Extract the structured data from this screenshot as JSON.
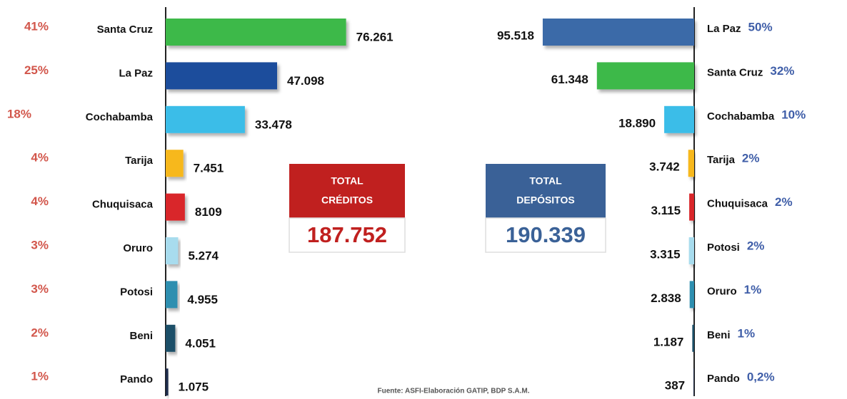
{
  "chart_data": [
    {
      "type": "bar",
      "orientation": "horizontal",
      "categories": [
        "Santa Cruz",
        "La Paz",
        "Cochabamba",
        "Tarija",
        "Chuquisaca",
        "Oruro",
        "Potosi",
        "Beni",
        "Pando"
      ],
      "values": [
        76261,
        47098,
        33478,
        7451,
        8109,
        5274,
        4955,
        4051,
        1075
      ],
      "value_labels": [
        "76.261",
        "47.098",
        "33.478",
        "7.451",
        "8109",
        "5.274",
        "4.955",
        "4.051",
        "1.075"
      ],
      "shares": [
        "41%",
        "25%",
        "18%",
        "4%",
        "4%",
        "3%",
        "3%",
        "2%",
        "1%"
      ],
      "colors": [
        "#3cb94a",
        "#1f4e9c",
        "#3bbde8",
        "#f7b81b",
        "#d9262a",
        "#a8dcee",
        "#2e8fb0",
        "#1f5068",
        "#1c2a4a"
      ],
      "xlim": [
        0,
        80000
      ],
      "total": {
        "title": [
          "TOTAL",
          "CRÉDITOS"
        ],
        "value": "187.752",
        "color": "#c0201f"
      }
    },
    {
      "type": "bar",
      "orientation": "horizontal",
      "categories": [
        "La Paz",
        "Santa Cruz",
        "Cochabamba",
        "Tarija",
        "Chuquisaca",
        "Potosi",
        "Oruro",
        "Beni",
        "Pando"
      ],
      "values": [
        95518,
        61348,
        18890,
        3742,
        3115,
        3315,
        2838,
        1187,
        387
      ],
      "value_labels": [
        "95.518",
        "61.348",
        "18.890",
        "3.742",
        "3.115",
        "3.315",
        "2.838",
        "1.187",
        "387"
      ],
      "shares": [
        "50%",
        "32%",
        "10%",
        "2%",
        "2%",
        "2%",
        "1%",
        "1%",
        "0,2%"
      ],
      "colors": [
        "#3a6aa8",
        "#3cb94a",
        "#3bbde8",
        "#f7b81b",
        "#d9262a",
        "#a8dcee",
        "#2e8fb0",
        "#1f5068",
        "#1c2a4a"
      ],
      "xlim": [
        0,
        100000
      ],
      "total": {
        "title": [
          "TOTAL",
          "DEPÓSITOS"
        ],
        "value": "190.339",
        "color": "#3a6197"
      }
    }
  ],
  "source": "Fuente: ASFI-Elaboración GATIP, BDP S.A.M."
}
